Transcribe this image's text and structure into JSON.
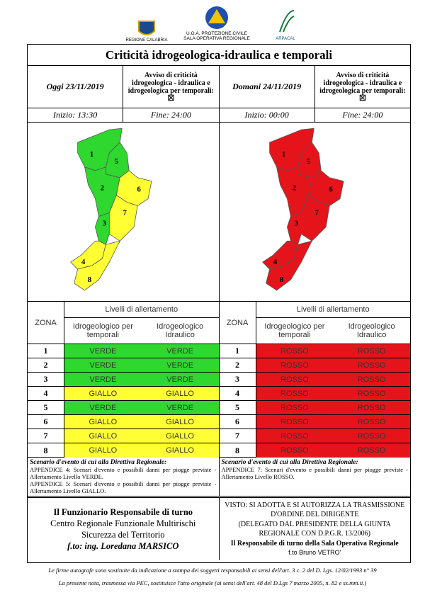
{
  "header": {
    "logos": [
      "REGIONE CALABRIA",
      "U.O.A. PROTEZIONE CIVILE",
      "SALA OPERATIVA REGIONALE",
      "ARPACAL"
    ]
  },
  "title": "Criticità idrogeologica-idraulica e temporali",
  "level_colors": {
    "VERDE": "#2ed82e",
    "GIALLO": "#ffff33",
    "ROSSO": "#e5141b"
  },
  "days": [
    {
      "date": "Oggi 23/11/2019",
      "notice": "Avviso di criticità idrogeologica - idraulica e idrogeologica per temporali:",
      "checkbox": "☒",
      "start": "Inizio: 13:30",
      "end": "Fine: 24:00",
      "table": {
        "zone_header": "ZONA",
        "levels_header": "Livelli di allertamento",
        "col_a": "Idrogeologico per temporali",
        "col_b": "Idrogeologico Idraulico",
        "rows": [
          {
            "zone": "1",
            "a": "VERDE",
            "b": "VERDE"
          },
          {
            "zone": "2",
            "a": "VERDE",
            "b": "VERDE"
          },
          {
            "zone": "3",
            "a": "VERDE",
            "b": "VERDE"
          },
          {
            "zone": "4",
            "a": "GIALLO",
            "b": "GIALLO"
          },
          {
            "zone": "5",
            "a": "VERDE",
            "b": "VERDE"
          },
          {
            "zone": "6",
            "a": "GIALLO",
            "b": "GIALLO"
          },
          {
            "zone": "7",
            "a": "GIALLO",
            "b": "GIALLO"
          },
          {
            "zone": "8",
            "a": "GIALLO",
            "b": "GIALLO"
          }
        ]
      },
      "scenario": {
        "title": "Scenario d'evento di cui alla Direttiva Regionale:",
        "lines": [
          "APPENDICE 4: Scenari d'evento e possibili danni per piogge previste - Allertamento Livello VERDE.",
          "APPENDICE 5: Scenari d'evento e possibili danni per piogge previste - Allertamento Livello GIALLO."
        ]
      }
    },
    {
      "date": "Domani 24/11/2019",
      "notice": "Avviso di criticità idrogeologica - idraulica e idrogeologica per temporali:",
      "checkbox": "☒",
      "start": "Inizio: 00:00",
      "end": "Fine: 24:00",
      "table": {
        "zone_header": "ZONA",
        "levels_header": "Livelli di allertamento",
        "col_a": "Idrogeologico per temporali",
        "col_b": "Idrogeologico Idraulico",
        "rows": [
          {
            "zone": "1",
            "a": "ROSSO",
            "b": "ROSSO"
          },
          {
            "zone": "2",
            "a": "ROSSO",
            "b": "ROSSO"
          },
          {
            "zone": "3",
            "a": "ROSSO",
            "b": "ROSSO"
          },
          {
            "zone": "4",
            "a": "ROSSO",
            "b": "ROSSO"
          },
          {
            "zone": "5",
            "a": "ROSSO",
            "b": "ROSSO"
          },
          {
            "zone": "6",
            "a": "ROSSO",
            "b": "ROSSO"
          },
          {
            "zone": "7",
            "a": "ROSSO",
            "b": "ROSSO"
          },
          {
            "zone": "8",
            "a": "ROSSO",
            "b": "ROSSO"
          }
        ]
      },
      "scenario": {
        "title": "Scenario d'evento di cui alla Direttiva Regionale:",
        "lines": [
          "APPENDICE 7: Scenari d'evento e possibili danni per piogge previste - Allertamento Livello ROSSO."
        ]
      }
    }
  ],
  "footer": {
    "left": [
      "Il Funzionario Responsabile di turno",
      "Centro Regionale Funzionale Multirischi",
      "Sicurezza del Territorio",
      "f.to: ing. Loredana MARSICO"
    ],
    "right": [
      "VISTO: SI ADOTTA E SI AUTORIZZA LA TRASMISSIONE",
      "D'ORDINE DEL DIRIGENTE",
      "(DELEGATO DAL PRESIDENTE DELLA GIUNTA",
      "REGIONALE CON D.P.G.R. 13/2006)",
      "Il Responsabile di turno della Sala Operativa Regionale",
      "f.to Bruno VETRO'"
    ]
  },
  "notes": [
    "Le firme autografe sono sostituite da indicazione a stampa dei soggetti responsabili ai sensi dell'art. 3 c. 2 del D. Lgs. 12/02/1993 n° 39",
    "La presente nota, trasmessa via PEC, sostituisce l'atto originale (ai sensi dell'art. 48 del D.Lgs 7 marzo 2005, n. 82 e ss.mm.ii.)"
  ]
}
